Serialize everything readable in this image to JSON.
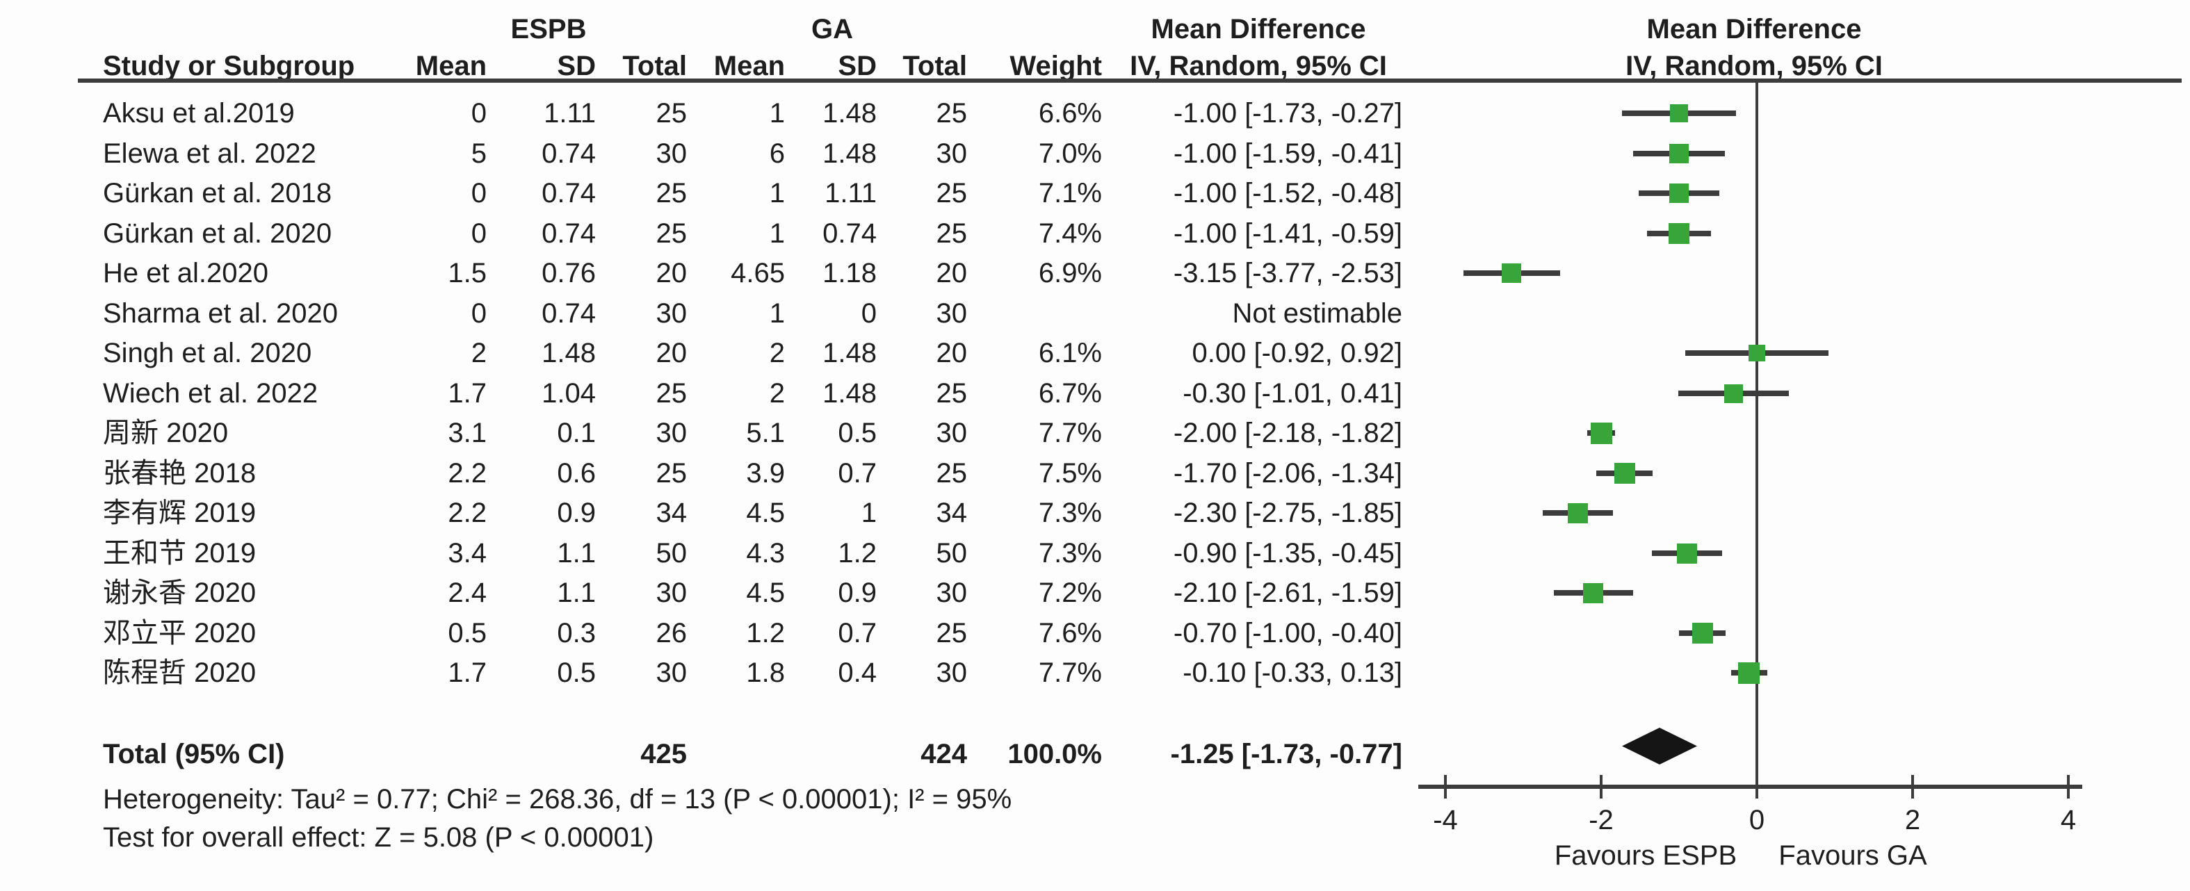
{
  "figure": {
    "group_left": "ESPB",
    "group_right": "GA",
    "md_title": "Mean Difference",
    "ci_subtitle": "IV, Random, 95% CI",
    "col_headers": {
      "study": "Study or Subgroup",
      "mean": "Mean",
      "sd": "SD",
      "total": "Total",
      "weight": "Weight"
    }
  },
  "chart_data": {
    "type": "forest",
    "effect_measure": "Mean Difference",
    "model": "IV, Random, 95% CI",
    "xlim": [
      -4,
      4
    ],
    "axis": {
      "ticks": [
        -4,
        -2,
        0,
        2,
        4
      ],
      "favours_left": "Favours ESPB",
      "favours_right": "Favours GA"
    },
    "colors": {
      "marker_green": "#38a53a",
      "line_dark": "#3c3c3c",
      "diamond_black": "#151515"
    },
    "studies": [
      {
        "label": "Aksu et al.2019",
        "e_mean": "0",
        "e_sd": "1.11",
        "e_total": "25",
        "g_mean": "1",
        "g_sd": "1.48",
        "g_total": "25",
        "weight": "6.6%",
        "ci": "-1.00 [-1.73, -0.27]",
        "md": -1.0,
        "lo": -1.73,
        "hi": -0.27,
        "w": 6.6
      },
      {
        "label": "Elewa et al. 2022",
        "e_mean": "5",
        "e_sd": "0.74",
        "e_total": "30",
        "g_mean": "6",
        "g_sd": "1.48",
        "g_total": "30",
        "weight": "7.0%",
        "ci": "-1.00 [-1.59, -0.41]",
        "md": -1.0,
        "lo": -1.59,
        "hi": -0.41,
        "w": 7.0
      },
      {
        "label": "Gürkan et al. 2018",
        "e_mean": "0",
        "e_sd": "0.74",
        "e_total": "25",
        "g_mean": "1",
        "g_sd": "1.11",
        "g_total": "25",
        "weight": "7.1%",
        "ci": "-1.00 [-1.52, -0.48]",
        "md": -1.0,
        "lo": -1.52,
        "hi": -0.48,
        "w": 7.1
      },
      {
        "label": "Gürkan et al. 2020",
        "e_mean": "0",
        "e_sd": "0.74",
        "e_total": "25",
        "g_mean": "1",
        "g_sd": "0.74",
        "g_total": "25",
        "weight": "7.4%",
        "ci": "-1.00 [-1.41, -0.59]",
        "md": -1.0,
        "lo": -1.41,
        "hi": -0.59,
        "w": 7.4
      },
      {
        "label": "He et al.2020",
        "e_mean": "1.5",
        "e_sd": "0.76",
        "e_total": "20",
        "g_mean": "4.65",
        "g_sd": "1.18",
        "g_total": "20",
        "weight": "6.9%",
        "ci": "-3.15 [-3.77, -2.53]",
        "md": -3.15,
        "lo": -3.77,
        "hi": -2.53,
        "w": 6.9
      },
      {
        "label": "Sharma et al. 2020",
        "e_mean": "0",
        "e_sd": "0.74",
        "e_total": "30",
        "g_mean": "1",
        "g_sd": "0",
        "g_total": "30",
        "weight": "",
        "ci": "Not estimable",
        "md": null,
        "lo": null,
        "hi": null,
        "w": null
      },
      {
        "label": "Singh et al. 2020",
        "e_mean": "2",
        "e_sd": "1.48",
        "e_total": "20",
        "g_mean": "2",
        "g_sd": "1.48",
        "g_total": "20",
        "weight": "6.1%",
        "ci": "0.00 [-0.92, 0.92]",
        "md": 0.0,
        "lo": -0.92,
        "hi": 0.92,
        "w": 6.1
      },
      {
        "label": "Wiech et al. 2022",
        "e_mean": "1.7",
        "e_sd": "1.04",
        "e_total": "25",
        "g_mean": "2",
        "g_sd": "1.48",
        "g_total": "25",
        "weight": "6.7%",
        "ci": "-0.30 [-1.01, 0.41]",
        "md": -0.3,
        "lo": -1.01,
        "hi": 0.41,
        "w": 6.7
      },
      {
        "label": "周新 2020",
        "e_mean": "3.1",
        "e_sd": "0.1",
        "e_total": "30",
        "g_mean": "5.1",
        "g_sd": "0.5",
        "g_total": "30",
        "weight": "7.7%",
        "ci": "-2.00 [-2.18, -1.82]",
        "md": -2.0,
        "lo": -2.18,
        "hi": -1.82,
        "w": 7.7
      },
      {
        "label": "张春艳 2018",
        "e_mean": "2.2",
        "e_sd": "0.6",
        "e_total": "25",
        "g_mean": "3.9",
        "g_sd": "0.7",
        "g_total": "25",
        "weight": "7.5%",
        "ci": "-1.70 [-2.06, -1.34]",
        "md": -1.7,
        "lo": -2.06,
        "hi": -1.34,
        "w": 7.5
      },
      {
        "label": "李有辉 2019",
        "e_mean": "2.2",
        "e_sd": "0.9",
        "e_total": "34",
        "g_mean": "4.5",
        "g_sd": "1",
        "g_total": "34",
        "weight": "7.3%",
        "ci": "-2.30 [-2.75, -1.85]",
        "md": -2.3,
        "lo": -2.75,
        "hi": -1.85,
        "w": 7.3
      },
      {
        "label": "王和节 2019",
        "e_mean": "3.4",
        "e_sd": "1.1",
        "e_total": "50",
        "g_mean": "4.3",
        "g_sd": "1.2",
        "g_total": "50",
        "weight": "7.3%",
        "ci": "-0.90 [-1.35, -0.45]",
        "md": -0.9,
        "lo": -1.35,
        "hi": -0.45,
        "w": 7.3
      },
      {
        "label": "谢永香 2020",
        "e_mean": "2.4",
        "e_sd": "1.1",
        "e_total": "30",
        "g_mean": "4.5",
        "g_sd": "0.9",
        "g_total": "30",
        "weight": "7.2%",
        "ci": "-2.10 [-2.61, -1.59]",
        "md": -2.1,
        "lo": -2.61,
        "hi": -1.59,
        "w": 7.2
      },
      {
        "label": "邓立平 2020",
        "e_mean": "0.5",
        "e_sd": "0.3",
        "e_total": "26",
        "g_mean": "1.2",
        "g_sd": "0.7",
        "g_total": "25",
        "weight": "7.6%",
        "ci": "-0.70 [-1.00, -0.40]",
        "md": -0.7,
        "lo": -1.0,
        "hi": -0.4,
        "w": 7.6
      },
      {
        "label": "陈程哲 2020",
        "e_mean": "1.7",
        "e_sd": "0.5",
        "e_total": "30",
        "g_mean": "1.8",
        "g_sd": "0.4",
        "g_total": "30",
        "weight": "7.7%",
        "ci": "-0.10 [-0.33, 0.13]",
        "md": -0.1,
        "lo": -0.33,
        "hi": 0.13,
        "w": 7.7
      }
    ],
    "total": {
      "label": "Total (95% CI)",
      "espb_total": "425",
      "ga_total": "424",
      "weight": "100.0%",
      "ci": "-1.25 [-1.73, -0.77]",
      "md": -1.25,
      "lo": -1.73,
      "hi": -0.77
    },
    "heterogeneity": "Heterogeneity: Tau² = 0.77; Chi² = 268.36, df = 13 (P < 0.00001); I² = 95%",
    "overall_effect": "Test for overall effect: Z = 5.08 (P < 0.00001)"
  }
}
